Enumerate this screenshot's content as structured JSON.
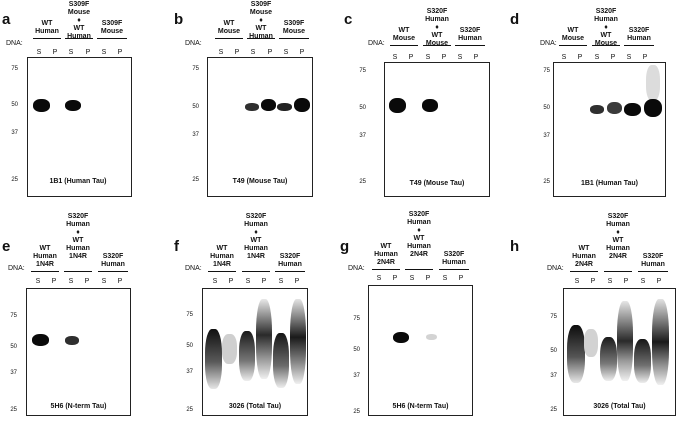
{
  "dna_label": "DNA:",
  "lane_s": "S",
  "lane_p": "P",
  "diamond": "♦",
  "panels": [
    {
      "label": "a",
      "col1": "WT\nHuman",
      "col2": "S309F\nMouse\n♦\nWT\nHuman",
      "col3": "S309F\nMouse",
      "mw": [
        "75",
        "50",
        "37",
        "25"
      ],
      "antibody": "1B1 (Human Tau)"
    },
    {
      "label": "b",
      "col1": "WT\nMouse",
      "col2": "S309F\nMouse\n♦\nWT\nHuman",
      "col3": "S309F\nMouse",
      "mw": [
        "75",
        "50",
        "37",
        "25"
      ],
      "antibody": "T49 (Mouse Tau)"
    },
    {
      "label": "c",
      "col1": "WT\nMouse",
      "col2": "S320F\nHuman\n♦\nWT\nMouse",
      "col3": "S320F\nHuman",
      "mw": [
        "75",
        "50",
        "37",
        "25"
      ],
      "antibody": "T49 (Mouse Tau)"
    },
    {
      "label": "d",
      "col1": "WT\nMouse",
      "col2": "S320F\nHuman\n♦\nWT\nMouse",
      "col3": "S320F\nHuman",
      "mw": [
        "75",
        "50",
        "37",
        "25"
      ],
      "antibody": "1B1 (Human Tau)"
    },
    {
      "label": "e",
      "col1": "WT\nHuman\n1N4R",
      "col2": "S320F\nHuman\n♦\nWT\nHuman\n1N4R",
      "col3": "S320F\nHuman",
      "mw": [
        "75",
        "50",
        "37",
        "25"
      ],
      "antibody": "5H6 (N-term Tau)"
    },
    {
      "label": "f",
      "col1": "WT\nHuman\n1N4R",
      "col2": "S320F\nHuman\n♦\nWT\nHuman\n1N4R",
      "col3": "S320F\nHuman",
      "mw": [
        "75",
        "50",
        "37",
        "25"
      ],
      "antibody": "3026 (Total Tau)"
    },
    {
      "label": "g",
      "col1": "WT\nHuman\n2N4R",
      "col2": "S320F\nHuman\n♦\nWT\nHuman\n2N4R",
      "col3": "S320F\nHuman",
      "mw": [
        "75",
        "50",
        "37",
        "25"
      ],
      "antibody": "5H6 (N-term Tau)"
    },
    {
      "label": "h",
      "col1": "WT\nHuman\n2N4R",
      "col2": "S320F\nHuman\n♦\nWT\nHuman\n2N4R",
      "col3": "S320F\nHuman",
      "mw": [
        "75",
        "50",
        "37",
        "25"
      ],
      "antibody": "3026 (Total Tau)"
    }
  ]
}
